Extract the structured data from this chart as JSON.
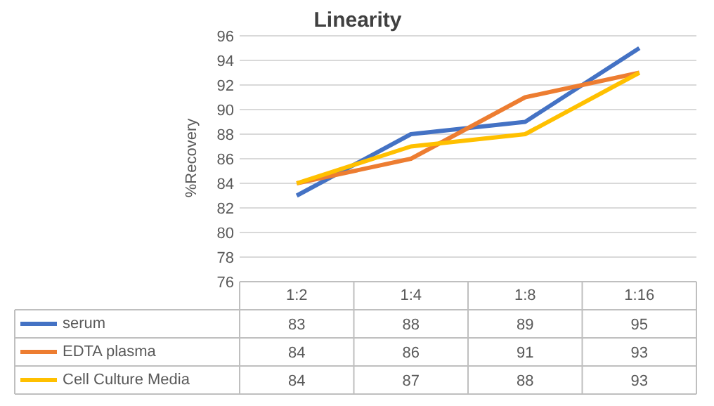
{
  "chart_data": {
    "type": "line",
    "title": "Linearity",
    "ylabel": "%Recovery",
    "categories": [
      "1:2",
      "1:4",
      "1:8",
      "1:16"
    ],
    "series": [
      {
        "name": "serum",
        "color": "#4472c4",
        "values": [
          83,
          88,
          89,
          95
        ]
      },
      {
        "name": "EDTA plasma",
        "color": "#ed7d31",
        "values": [
          84,
          86,
          91,
          93
        ]
      },
      {
        "name": "Cell Culture Media",
        "color": "#ffc000",
        "values": [
          84,
          87,
          88,
          93
        ]
      }
    ],
    "ylim": [
      76,
      96
    ],
    "yticks": [
      76,
      78,
      80,
      82,
      84,
      86,
      88,
      90,
      92,
      94,
      96
    ],
    "grid": "y",
    "legend": "bottom",
    "data_labels": true,
    "marker": "none",
    "line_style": "solid"
  }
}
